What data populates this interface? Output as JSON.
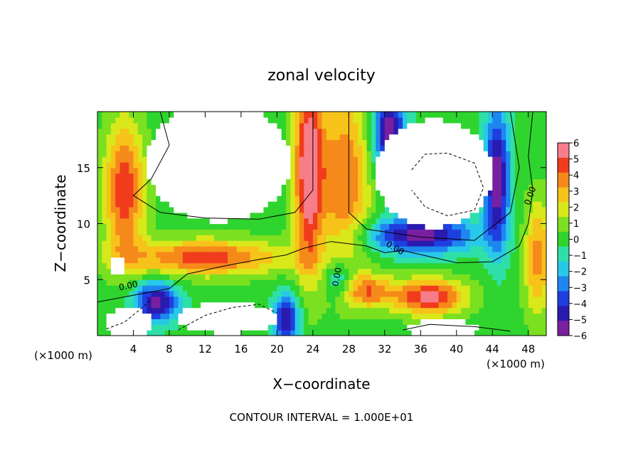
{
  "chart_data": {
    "type": "heatmap",
    "title": "zonal velocity",
    "xlabel": "X−coordinate",
    "ylabel": "Z−coordinate",
    "x_unit_left": "(×1000 m)",
    "x_unit_right": "(×1000 m)",
    "xlim": [
      0,
      50
    ],
    "ylim": [
      0,
      20
    ],
    "x_ticks": [
      "4",
      "8",
      "12",
      "16",
      "20",
      "24",
      "28",
      "32",
      "36",
      "40",
      "44",
      "48"
    ],
    "x_tick_values": [
      4,
      8,
      12,
      16,
      20,
      24,
      28,
      32,
      36,
      40,
      44,
      48
    ],
    "y_ticks": [
      "5",
      "10",
      "15"
    ],
    "y_tick_values": [
      5,
      10,
      15
    ],
    "colorbar": {
      "ticks": [
        "6",
        "5",
        "4",
        "3",
        "2",
        "1",
        "0",
        "−1",
        "−2",
        "−3",
        "−4",
        "−5",
        "−6"
      ],
      "tick_values": [
        6,
        5,
        4,
        3,
        2,
        1,
        0,
        -1,
        -2,
        -3,
        -4,
        -5,
        -6
      ],
      "vmin": -6,
      "vmax": 6,
      "colors": [
        "#7a1fa0",
        "#2a1bb0",
        "#1e3fe0",
        "#1f86f0",
        "#28c8e8",
        "#2ee0a8",
        "#2fd42f",
        "#7be020",
        "#d8e81a",
        "#f7c31a",
        "#f58a1a",
        "#f03c1c",
        "#f77d8a"
      ]
    },
    "contour_labels": [
      "0.00",
      "0.00",
      "0.00",
      "0.00"
    ],
    "footer": "CONTOUR INTERVAL = 1.000E+01"
  }
}
